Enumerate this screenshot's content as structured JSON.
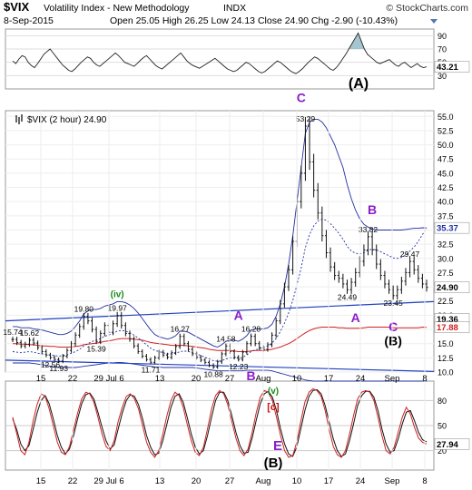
{
  "header": {
    "symbol": "$VIX",
    "name": "Volatility Index - New Methodology",
    "exchange": "INDX",
    "date": "8-Sep-2015",
    "open_label": "Open",
    "open": "25.05",
    "high_label": "High",
    "high": "26.25",
    "low_label": "Low",
    "low": "24.13",
    "close_label": "Close",
    "close": "24.90",
    "chg_label": "Chg",
    "chg": "-2.90 (-10.43%)",
    "credit": "© StockCharts.com"
  },
  "colors": {
    "price_bar": "#111111",
    "ma_fast": "#2030a0",
    "ma_slow": "#d02020",
    "trend_line": "#2040c0",
    "label_purple": "#8a1fc8",
    "label_green": "#1a8a1a",
    "label_red": "#cc1111",
    "rsi_fill": "#8fb7c6",
    "stoch_k": "#d02020",
    "stoch_d": "#111111"
  },
  "chart_data": [
    {
      "type": "line",
      "name": "rsi-panel",
      "y_ticks": [
        "90",
        "70",
        "50",
        "30"
      ],
      "ylim": [
        10,
        100
      ],
      "last_value": "43.21",
      "wave_label": "(A)",
      "values": [
        52,
        48,
        55,
        60,
        58,
        50,
        45,
        42,
        48,
        55,
        62,
        66,
        70,
        64,
        58,
        52,
        46,
        42,
        38,
        36,
        40,
        45,
        50,
        54,
        58,
        56,
        50,
        46,
        44,
        48,
        52,
        56,
        60,
        64,
        60,
        55,
        50,
        48,
        46,
        44,
        48,
        53,
        57,
        60,
        55,
        50,
        45,
        42,
        40,
        44,
        48,
        52,
        56,
        60,
        64,
        58,
        52,
        48,
        45,
        43,
        41,
        44,
        47,
        50,
        53,
        56,
        52,
        48,
        44,
        40,
        38,
        36,
        38,
        42,
        46,
        50,
        48,
        44,
        40,
        36,
        34,
        36,
        40,
        44,
        48,
        52,
        50,
        46,
        42,
        38,
        35,
        33,
        36,
        40,
        45,
        50,
        54,
        58,
        56,
        52,
        48,
        44,
        40,
        38,
        42,
        48,
        55,
        62,
        70,
        78,
        86,
        94,
        82,
        70,
        62,
        58,
        54,
        50,
        48,
        50,
        52,
        54,
        50,
        46,
        44,
        48,
        50,
        46,
        42,
        45,
        48,
        44,
        42,
        43.21
      ]
    },
    {
      "type": "line",
      "name": "price-panel",
      "title": "$VIX (2 hour) 24.90",
      "ylim": [
        10,
        56
      ],
      "y_ticks": [
        "55.0",
        "52.5",
        "50.0",
        "47.5",
        "45.0",
        "42.5",
        "40.0",
        "37.5",
        "35.0",
        "32.5",
        "30.0",
        "27.5",
        "25.0",
        "22.5",
        "20.0",
        "17.5",
        "15.0",
        "12.5",
        "10.0"
      ],
      "x_ticks": [
        "15",
        "22",
        "29 Jul 6",
        "13",
        "20",
        "27",
        "Aug",
        "10",
        "17",
        "24",
        "Sep",
        "8"
      ],
      "last_price": "24.90",
      "ma_fast_last": "35.37",
      "ma_slow_last": "17.88",
      "ma_mid_last": "19.36",
      "values": [
        15.74,
        15.2,
        14.6,
        14.9,
        15.62,
        15.1,
        14.3,
        13.6,
        13.0,
        12.56,
        12.2,
        11.93,
        12.8,
        13.8,
        15.0,
        16.5,
        18.0,
        19.8,
        19.0,
        17.5,
        15.39,
        16.8,
        18.2,
        17.0,
        18.5,
        19.97,
        18.2,
        16.8,
        15.8,
        14.6,
        13.6,
        12.8,
        12.2,
        11.71,
        12.5,
        13.5,
        13.0,
        12.6,
        13.4,
        14.5,
        16.27,
        15.0,
        14.0,
        13.2,
        12.6,
        12.1,
        11.7,
        11.2,
        10.88,
        11.8,
        13.2,
        14.58,
        13.6,
        12.6,
        12.23,
        13.5,
        15.0,
        16.28,
        15.0,
        14.3,
        14.0,
        14.8,
        16.5,
        19.0,
        22.0,
        25.0,
        28.0,
        33.0,
        40.0,
        45.0,
        53.29,
        47.0,
        42.0,
        38.0,
        34.0,
        31.0,
        28.5,
        27.0,
        26.5,
        25.5,
        24.49,
        25.8,
        27.5,
        29.5,
        31.5,
        33.82,
        31.5,
        29.0,
        27.0,
        25.5,
        24.5,
        23.45,
        24.5,
        26.0,
        27.5,
        29.47,
        28.0,
        26.5,
        25.5,
        24.9
      ],
      "ma_fast": [
        13.6,
        13.5,
        13.4,
        13.5,
        13.6,
        13.5,
        13.3,
        13.2,
        13.1,
        13.0,
        12.9,
        12.8,
        12.9,
        13.0,
        13.3,
        13.6,
        14.0,
        14.6,
        15.0,
        15.4,
        15.6,
        15.9,
        16.3,
        16.5,
        16.8,
        17.2,
        17.3,
        17.2,
        16.9,
        16.5,
        16.0,
        15.4,
        14.8,
        14.2,
        13.8,
        13.6,
        13.4,
        13.2,
        13.2,
        13.3,
        13.6,
        13.7,
        13.6,
        13.4,
        13.2,
        12.9,
        12.6,
        12.3,
        12.0,
        11.9,
        12.0,
        12.3,
        12.5,
        12.5,
        12.4,
        12.6,
        13.0,
        13.6,
        13.9,
        14.1,
        14.3,
        14.6,
        15.1,
        15.9,
        17.1,
        18.6,
        20.4,
        22.6,
        25.4,
        28.3,
        31.9,
        34.2,
        35.7,
        36.6,
        36.9,
        36.7,
        36.1,
        35.3,
        34.4,
        33.4,
        32.1,
        31.3,
        30.9,
        30.8,
        31.0,
        31.5,
        31.6,
        31.5,
        31.2,
        30.8,
        30.5,
        30.1,
        30.0,
        30.2,
        30.6,
        31.3,
        32.0,
        33.0,
        34.2,
        35.37
      ],
      "ma_slow": [
        15.0,
        15.0,
        14.9,
        14.9,
        14.8,
        14.8,
        14.7,
        14.6,
        14.6,
        14.5,
        14.5,
        14.4,
        14.4,
        14.4,
        14.4,
        14.5,
        14.6,
        14.8,
        14.9,
        15.0,
        15.1,
        15.2,
        15.4,
        15.5,
        15.6,
        15.8,
        15.9,
        15.9,
        15.9,
        15.8,
        15.7,
        15.6,
        15.4,
        15.2,
        15.1,
        15.0,
        14.9,
        14.8,
        14.7,
        14.7,
        14.7,
        14.7,
        14.6,
        14.5,
        14.4,
        14.3,
        14.2,
        14.0,
        13.9,
        13.8,
        13.8,
        13.8,
        13.8,
        13.7,
        13.6,
        13.6,
        13.6,
        13.7,
        13.8,
        13.8,
        13.8,
        13.9,
        14.0,
        14.2,
        14.4,
        14.7,
        15.0,
        15.4,
        15.9,
        16.4,
        16.9,
        17.3,
        17.6,
        17.8,
        17.9,
        17.9,
        17.9,
        17.9,
        17.8,
        17.8,
        17.7,
        17.7,
        17.7,
        17.7,
        17.8,
        17.9,
        17.9,
        17.9,
        17.9,
        17.9,
        17.9,
        17.8,
        17.8,
        17.8,
        17.8,
        17.8,
        17.8,
        17.8,
        17.9,
        17.88
      ],
      "bb_upper": [
        18.0,
        18.0,
        17.8,
        17.8,
        17.8,
        17.6,
        17.5,
        17.4,
        17.2,
        17.0,
        16.8,
        16.6,
        16.6,
        16.8,
        17.2,
        18.0,
        19.0,
        20.2,
        20.8,
        21.0,
        21.0,
        21.2,
        21.6,
        21.8,
        22.0,
        22.4,
        22.4,
        22.2,
        21.8,
        21.2,
        20.4,
        19.4,
        18.4,
        17.4,
        16.6,
        16.2,
        16.0,
        15.8,
        16.0,
        16.4,
        17.2,
        17.2,
        17.0,
        16.6,
        16.2,
        15.8,
        15.4,
        15.0,
        14.6,
        14.4,
        14.8,
        15.4,
        15.6,
        15.6,
        15.4,
        15.8,
        16.4,
        17.4,
        17.6,
        17.6,
        17.6,
        17.8,
        18.4,
        19.8,
        22.0,
        25.0,
        29.0,
        34.0,
        40.0,
        46.0,
        52.0,
        54.0,
        54.5,
        54.5,
        54.0,
        53.0,
        51.5,
        50.0,
        48.0,
        46.0,
        43.0,
        40.5,
        38.5,
        37.0,
        36.0,
        35.5,
        35.2,
        35.0,
        35.0,
        35.0,
        35.0,
        35.0,
        35.0,
        35.0,
        35.1,
        35.2,
        35.3,
        35.3,
        35.4,
        35.37
      ],
      "bb_lower": [
        11.6,
        11.6,
        11.6,
        11.6,
        11.6,
        11.5,
        11.4,
        11.3,
        11.2,
        11.0,
        10.9,
        10.8,
        10.8,
        10.8,
        10.8,
        10.8,
        10.9,
        11.0,
        11.1,
        11.2,
        11.3,
        11.4,
        11.5,
        11.6,
        11.6,
        11.7,
        11.7,
        11.6,
        11.5,
        11.4,
        11.3,
        11.2,
        11.1,
        11.0,
        10.9,
        10.9,
        10.8,
        10.8,
        10.8,
        10.8,
        10.8,
        10.8,
        10.8,
        10.8,
        10.7,
        10.6,
        10.5,
        10.4,
        10.3,
        10.2,
        10.2,
        10.2,
        10.2,
        10.2,
        10.2,
        10.2,
        10.3,
        10.3,
        10.3,
        10.3,
        10.3,
        10.3,
        10.2,
        10.0,
        9.8,
        9.6,
        9.4,
        9.2,
        9.0,
        8.8,
        8.6,
        8.5,
        8.4,
        8.4,
        8.4,
        8.4,
        8.4,
        8.4,
        8.4,
        8.4,
        8.4,
        8.4,
        8.4,
        8.4,
        8.4,
        8.4,
        8.4,
        8.4,
        8.4,
        8.4,
        8.4,
        8.4,
        8.4,
        8.4,
        8.4,
        8.4,
        8.4,
        8.4,
        8.4,
        8.4
      ],
      "point_labels": [
        {
          "i": 0,
          "text": "15.74",
          "pos": "above"
        },
        {
          "i": 4,
          "text": "15.62",
          "pos": "above"
        },
        {
          "i": 9,
          "text": "12.56",
          "pos": "below"
        },
        {
          "i": 11,
          "text": "11.93",
          "pos": "below"
        },
        {
          "i": 17,
          "text": "19.80",
          "pos": "above"
        },
        {
          "i": 20,
          "text": "15.39",
          "pos": "below"
        },
        {
          "i": 25,
          "text": "19.97",
          "pos": "above"
        },
        {
          "i": 33,
          "text": "11.71",
          "pos": "below"
        },
        {
          "i": 40,
          "text": "16.27",
          "pos": "above"
        },
        {
          "i": 48,
          "text": "10.88",
          "pos": "below"
        },
        {
          "i": 51,
          "text": "14.58",
          "pos": "above"
        },
        {
          "i": 54,
          "text": "12.23",
          "pos": "below"
        },
        {
          "i": 57,
          "text": "16.28",
          "pos": "above"
        },
        {
          "i": 70,
          "text": "53.29",
          "pos": "above"
        },
        {
          "i": 80,
          "text": "24.49",
          "pos": "below"
        },
        {
          "i": 85,
          "text": "33.82",
          "pos": "above"
        },
        {
          "i": 91,
          "text": "23.45",
          "pos": "below"
        },
        {
          "i": 95,
          "text": "29.47",
          "pos": "above"
        }
      ],
      "wave_labels": [
        {
          "i": 25,
          "price": 23.2,
          "text": "(iv)",
          "color": "green"
        },
        {
          "i": 69,
          "price": 57.5,
          "text": "C",
          "color": "purple"
        },
        {
          "i": 54,
          "price": 19.2,
          "text": "A",
          "color": "purple"
        },
        {
          "i": 57,
          "price": 8.6,
          "text": "B",
          "color": "purple"
        },
        {
          "i": 86,
          "price": 37.8,
          "text": "B",
          "color": "purple"
        },
        {
          "i": 82,
          "price": 18.8,
          "text": "A",
          "color": "purple"
        },
        {
          "i": 91,
          "price": 17.2,
          "text": "C",
          "color": "purple"
        },
        {
          "i": 91,
          "price": 14.7,
          "text": "(B)",
          "color": "black"
        }
      ]
    },
    {
      "type": "line",
      "name": "stochastic-panel",
      "y_ticks": [
        "80",
        "50",
        "20"
      ],
      "ylim": [
        0,
        100
      ],
      "last_value": "27.94",
      "wave_labels": [
        "(v)",
        "[c]",
        "E",
        "(B)"
      ],
      "k": [
        60,
        40,
        20,
        15,
        30,
        55,
        75,
        88,
        85,
        70,
        50,
        30,
        18,
        15,
        25,
        45,
        65,
        82,
        90,
        88,
        78,
        60,
        40,
        25,
        20,
        32,
        55,
        72,
        85,
        88,
        82,
        70,
        50,
        30,
        18,
        12,
        20,
        40,
        62,
        80,
        90,
        86,
        72,
        52,
        32,
        18,
        14,
        24,
        46,
        70,
        86,
        92,
        88,
        75,
        55,
        35,
        20,
        14,
        22,
        42,
        65,
        84,
        92,
        90,
        80,
        60,
        38,
        20,
        12,
        14,
        30,
        55,
        78,
        90,
        94,
        92,
        85,
        68,
        45,
        25,
        15,
        12,
        20,
        40,
        62,
        82,
        90,
        92,
        90,
        80,
        60,
        38,
        20,
        16,
        24,
        42,
        60,
        72,
        64,
        48,
        35,
        30,
        27.94
      ],
      "d": [
        58,
        45,
        28,
        20,
        26,
        45,
        65,
        80,
        86,
        76,
        58,
        38,
        24,
        16,
        22,
        38,
        58,
        76,
        87,
        89,
        82,
        66,
        48,
        32,
        22,
        27,
        46,
        65,
        80,
        87,
        85,
        75,
        58,
        38,
        24,
        15,
        17,
        32,
        52,
        72,
        85,
        88,
        78,
        60,
        40,
        24,
        16,
        20,
        38,
        60,
        80,
        90,
        90,
        80,
        62,
        42,
        26,
        17,
        18,
        35,
        56,
        76,
        88,
        91,
        84,
        68,
        46,
        28,
        16,
        13,
        24,
        46,
        68,
        85,
        92,
        93,
        88,
        74,
        54,
        34,
        20,
        13,
        16,
        32,
        52,
        74,
        86,
        91,
        91,
        84,
        68,
        46,
        28,
        18,
        20,
        34,
        52,
        66,
        68,
        56,
        42,
        33,
        30.5
      ]
    }
  ]
}
